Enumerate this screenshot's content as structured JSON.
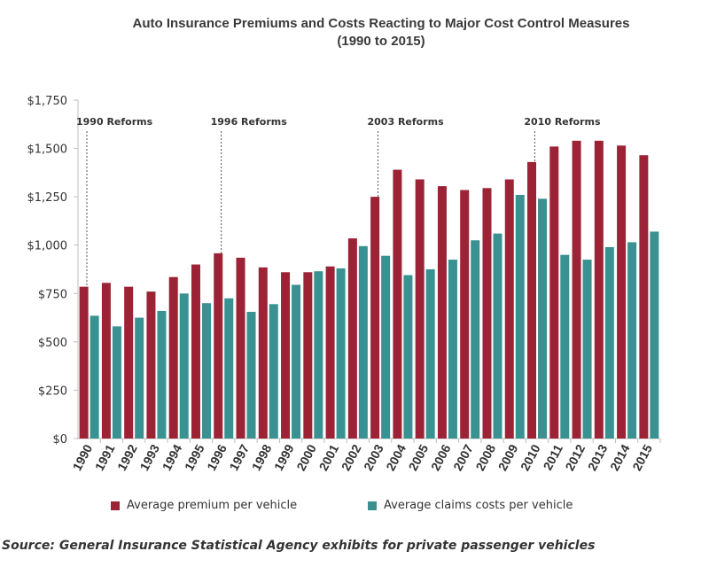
{
  "title_line1": "Auto Insurance Premiums and Costs Reacting to Major Cost Control Measures",
  "title_line2": "(1990 to 2015)",
  "source": "Source: General Insurance Statistical Agency exhibits for private passenger vehicles",
  "colors": {
    "premium": "#9b2335",
    "claims": "#3a9191",
    "axis": "#bfbfbf",
    "annotation": "#555555"
  },
  "chart_data": {
    "type": "bar",
    "title": "Auto Insurance Premiums and Costs Reacting to Major Cost Control Measures (1990 to 2015)",
    "categories": [
      "1990",
      "1991",
      "1992",
      "1993",
      "1994",
      "1995",
      "1996",
      "1997",
      "1998",
      "1999",
      "2000",
      "2001",
      "2002",
      "2003",
      "2004",
      "2005",
      "2006",
      "2007",
      "2008",
      "2009",
      "2010",
      "2011",
      "2012",
      "2013",
      "2014",
      "2015"
    ],
    "series": [
      {
        "name": "Average premium per vehicle",
        "values": [
          785,
          805,
          785,
          760,
          835,
          900,
          958,
          935,
          885,
          860,
          860,
          890,
          1035,
          1250,
          1390,
          1340,
          1305,
          1285,
          1295,
          1340,
          1430,
          1510,
          1540,
          1540,
          1515,
          1465
        ]
      },
      {
        "name": "Average claims costs per vehicle",
        "values": [
          635,
          580,
          625,
          660,
          750,
          700,
          725,
          655,
          695,
          795,
          865,
          880,
          995,
          945,
          845,
          875,
          925,
          1025,
          1060,
          1260,
          1240,
          950,
          925,
          990,
          1015,
          1070
        ]
      }
    ],
    "yticks": [
      "$0",
      "$250",
      "$500",
      "$750",
      "$1,000",
      "$1,250",
      "$1,500",
      "$1,750"
    ],
    "ylim": [
      0,
      1750
    ],
    "annotations": [
      {
        "label": "1990 Reforms",
        "category": "1990"
      },
      {
        "label": "1996 Reforms",
        "category": "1996"
      },
      {
        "label": "2003 Reforms",
        "category": "2003"
      },
      {
        "label": "2010 Reforms",
        "category": "2010"
      }
    ],
    "grid": false,
    "legend_position": "bottom"
  }
}
